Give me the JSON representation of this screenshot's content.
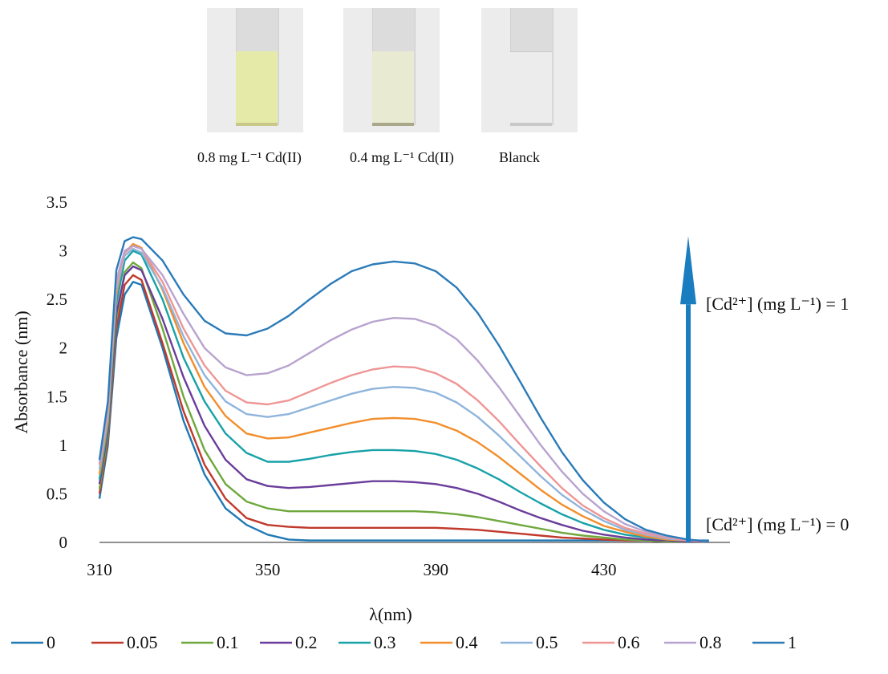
{
  "photos": {
    "labels": [
      "0.8 mg L⁻¹ Cd(II)",
      "0.4 mg L⁻¹ Cd(II)",
      "Blanck"
    ],
    "colors": [
      "#e6eaa8",
      "#e9ead2",
      "#ececec"
    ]
  },
  "chart_data": {
    "type": "line",
    "xlabel": "λ(nm)",
    "ylabel": "Absorbance (nm)",
    "xlim": [
      310,
      460
    ],
    "ylim": [
      0,
      3.5
    ],
    "xticks": [
      310,
      350,
      390,
      430
    ],
    "yticks": [
      0,
      0.5,
      1,
      1.5,
      2,
      2.5,
      3,
      3.5
    ],
    "ytick_labels": [
      "0",
      "0.5",
      "1",
      "1.5",
      "2",
      "2.5",
      "3",
      "3.5"
    ],
    "grid": false,
    "legend_position": "bottom",
    "annotations": {
      "top": "[Cd²⁺] (mg L⁻¹) = 1",
      "bottom": "[Cd²⁺] (mg L⁻¹) = 0"
    },
    "x": [
      310,
      312,
      314,
      316,
      318,
      320,
      325,
      330,
      335,
      340,
      345,
      350,
      355,
      360,
      365,
      370,
      375,
      380,
      385,
      390,
      395,
      400,
      405,
      410,
      415,
      420,
      425,
      430,
      435,
      440,
      445,
      450,
      455
    ],
    "series": [
      {
        "name": "0",
        "color": "#1f78b4",
        "values": [
          0.45,
          1.0,
          2.1,
          2.55,
          2.68,
          2.65,
          2.0,
          1.25,
          0.7,
          0.35,
          0.18,
          0.08,
          0.03,
          0.02,
          0.02,
          0.02,
          0.02,
          0.02,
          0.02,
          0.02,
          0.02,
          0.02,
          0.02,
          0.02,
          0.02,
          0.02,
          0.02,
          0.02,
          0.02,
          0.02,
          0.02,
          0.02,
          0.02
        ]
      },
      {
        "name": "0.05",
        "color": "#c0392b",
        "values": [
          0.5,
          1.05,
          2.2,
          2.65,
          2.75,
          2.7,
          2.05,
          1.35,
          0.8,
          0.45,
          0.25,
          0.18,
          0.16,
          0.15,
          0.15,
          0.15,
          0.15,
          0.15,
          0.15,
          0.15,
          0.14,
          0.13,
          0.11,
          0.09,
          0.07,
          0.05,
          0.04,
          0.03,
          0.02,
          0.02,
          0.01,
          0.01,
          0.01
        ]
      },
      {
        "name": "0.1",
        "color": "#6ea83c",
        "values": [
          0.55,
          1.1,
          2.3,
          2.78,
          2.88,
          2.82,
          2.2,
          1.5,
          0.95,
          0.6,
          0.42,
          0.35,
          0.32,
          0.32,
          0.32,
          0.32,
          0.32,
          0.32,
          0.32,
          0.31,
          0.29,
          0.26,
          0.22,
          0.18,
          0.14,
          0.1,
          0.07,
          0.05,
          0.03,
          0.02,
          0.01,
          0.01,
          0.01
        ]
      },
      {
        "name": "0.2",
        "color": "#6a3d9a",
        "values": [
          0.6,
          1.15,
          2.35,
          2.75,
          2.84,
          2.8,
          2.3,
          1.7,
          1.2,
          0.85,
          0.65,
          0.58,
          0.56,
          0.57,
          0.59,
          0.61,
          0.63,
          0.63,
          0.62,
          0.6,
          0.56,
          0.5,
          0.42,
          0.33,
          0.25,
          0.18,
          0.12,
          0.08,
          0.05,
          0.03,
          0.02,
          0.01,
          0.01
        ]
      },
      {
        "name": "0.3",
        "color": "#17a2a8",
        "values": [
          0.65,
          1.2,
          2.45,
          2.9,
          3.0,
          2.96,
          2.5,
          1.9,
          1.45,
          1.12,
          0.92,
          0.83,
          0.83,
          0.86,
          0.9,
          0.93,
          0.95,
          0.95,
          0.94,
          0.91,
          0.85,
          0.76,
          0.65,
          0.52,
          0.4,
          0.29,
          0.2,
          0.13,
          0.08,
          0.05,
          0.03,
          0.02,
          0.01
        ]
      },
      {
        "name": "0.4",
        "color": "#f28e2b",
        "values": [
          0.7,
          1.25,
          2.55,
          2.98,
          3.07,
          3.03,
          2.6,
          2.05,
          1.6,
          1.3,
          1.12,
          1.07,
          1.08,
          1.13,
          1.18,
          1.23,
          1.27,
          1.28,
          1.27,
          1.23,
          1.15,
          1.03,
          0.88,
          0.71,
          0.54,
          0.39,
          0.27,
          0.17,
          0.11,
          0.06,
          0.03,
          0.02,
          0.01
        ]
      },
      {
        "name": "0.5",
        "color": "#8fb4dc",
        "values": [
          0.75,
          1.3,
          2.6,
          2.95,
          3.02,
          2.98,
          2.62,
          2.12,
          1.72,
          1.45,
          1.32,
          1.29,
          1.32,
          1.39,
          1.46,
          1.53,
          1.58,
          1.6,
          1.59,
          1.54,
          1.44,
          1.29,
          1.1,
          0.89,
          0.68,
          0.49,
          0.34,
          0.22,
          0.13,
          0.08,
          0.04,
          0.02,
          0.01
        ]
      },
      {
        "name": "0.6",
        "color": "#ef9595",
        "values": [
          0.8,
          1.35,
          2.65,
          2.98,
          3.05,
          3.02,
          2.68,
          2.2,
          1.82,
          1.56,
          1.44,
          1.42,
          1.46,
          1.55,
          1.64,
          1.72,
          1.78,
          1.81,
          1.8,
          1.74,
          1.63,
          1.46,
          1.25,
          1.01,
          0.78,
          0.56,
          0.38,
          0.25,
          0.15,
          0.09,
          0.05,
          0.02,
          0.01
        ]
      },
      {
        "name": "0.8",
        "color": "#b8a3cf",
        "values": [
          0.82,
          1.4,
          2.7,
          3.0,
          3.05,
          3.02,
          2.75,
          2.35,
          2.0,
          1.8,
          1.72,
          1.74,
          1.82,
          1.95,
          2.08,
          2.19,
          2.27,
          2.31,
          2.3,
          2.23,
          2.09,
          1.87,
          1.6,
          1.3,
          1.0,
          0.73,
          0.5,
          0.32,
          0.19,
          0.11,
          0.06,
          0.03,
          0.01
        ]
      },
      {
        "name": "1",
        "color": "#2b7bb9",
        "values": [
          0.85,
          1.45,
          2.8,
          3.1,
          3.14,
          3.12,
          2.9,
          2.55,
          2.28,
          2.15,
          2.13,
          2.2,
          2.33,
          2.5,
          2.66,
          2.79,
          2.86,
          2.89,
          2.87,
          2.79,
          2.62,
          2.36,
          2.03,
          1.66,
          1.28,
          0.93,
          0.64,
          0.41,
          0.24,
          0.13,
          0.07,
          0.03,
          0.01
        ]
      }
    ]
  }
}
